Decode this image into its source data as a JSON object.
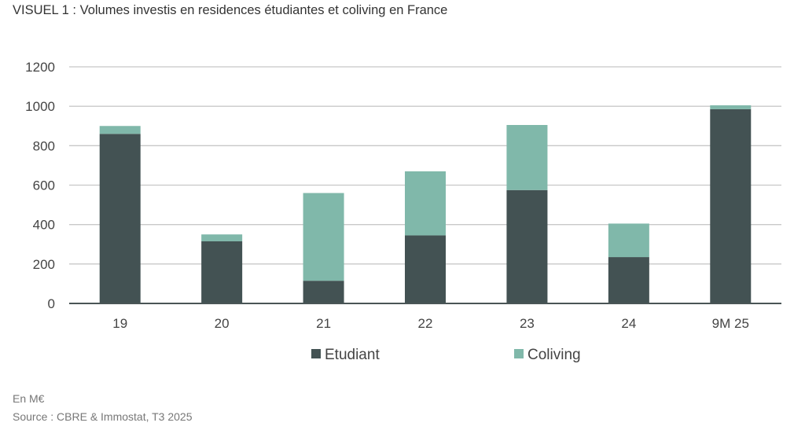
{
  "title": "VISUEL 1 : Volumes investis en residences étudiantes et coliving en France",
  "footnotes": {
    "unit": "En M€",
    "source": "Source : CBRE & Immostat, T3 2025"
  },
  "chart_data": {
    "type": "bar",
    "stacked": true,
    "title": "VISUEL 1 : Volumes investis en residences étudiantes et coliving en France",
    "xlabel": "",
    "ylabel": "",
    "categories": [
      "19",
      "20",
      "21",
      "22",
      "23",
      "24",
      "9M 25"
    ],
    "series": [
      {
        "name": "Etudiant",
        "color": "#435253",
        "values": [
          860,
          315,
          115,
          345,
          575,
          235,
          985
        ]
      },
      {
        "name": "Coliving",
        "color": "#80b8aa",
        "values": [
          40,
          35,
          445,
          325,
          330,
          170,
          20
        ]
      }
    ],
    "ylim": [
      0,
      1200
    ],
    "yticks": [
      0,
      200,
      400,
      600,
      800,
      1000,
      1200
    ],
    "grid": true,
    "legend_placement": "bottom-center"
  }
}
